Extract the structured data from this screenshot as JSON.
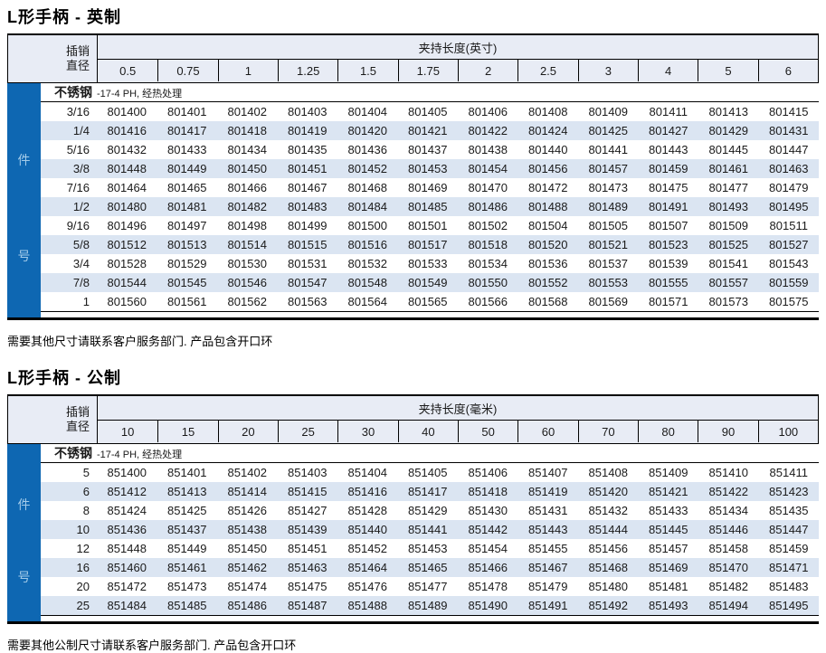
{
  "colors": {
    "accent_blue": "#0e67b2",
    "header_bg": "#e8ecf5",
    "alt_row": "#dbe5f2",
    "side_label": "#a3cbe9"
  },
  "tables": [
    {
      "title": "L形手柄 - 英制",
      "corner": [
        "插销",
        "直径"
      ],
      "span_header": "夹持长度(英寸)",
      "columns": [
        "0.5",
        "0.75",
        "1",
        "1.25",
        "1.5",
        "1.75",
        "2",
        "2.5",
        "3",
        "4",
        "5",
        "6"
      ],
      "material": "不锈钢",
      "material_note": "-17-4 PH, 经热处理",
      "side_top": "件",
      "side_bottom": "号",
      "rows": [
        {
          "diameter": "3/16",
          "parts": [
            "801400",
            "801401",
            "801402",
            "801403",
            "801404",
            "801405",
            "801406",
            "801408",
            "801409",
            "801411",
            "801413",
            "801415"
          ]
        },
        {
          "diameter": "1/4",
          "parts": [
            "801416",
            "801417",
            "801418",
            "801419",
            "801420",
            "801421",
            "801422",
            "801424",
            "801425",
            "801427",
            "801429",
            "801431"
          ]
        },
        {
          "diameter": "5/16",
          "parts": [
            "801432",
            "801433",
            "801434",
            "801435",
            "801436",
            "801437",
            "801438",
            "801440",
            "801441",
            "801443",
            "801445",
            "801447"
          ]
        },
        {
          "diameter": "3/8",
          "parts": [
            "801448",
            "801449",
            "801450",
            "801451",
            "801452",
            "801453",
            "801454",
            "801456",
            "801457",
            "801459",
            "801461",
            "801463"
          ]
        },
        {
          "diameter": "7/16",
          "parts": [
            "801464",
            "801465",
            "801466",
            "801467",
            "801468",
            "801469",
            "801470",
            "801472",
            "801473",
            "801475",
            "801477",
            "801479"
          ]
        },
        {
          "diameter": "1/2",
          "parts": [
            "801480",
            "801481",
            "801482",
            "801483",
            "801484",
            "801485",
            "801486",
            "801488",
            "801489",
            "801491",
            "801493",
            "801495"
          ]
        },
        {
          "diameter": "9/16",
          "parts": [
            "801496",
            "801497",
            "801498",
            "801499",
            "801500",
            "801501",
            "801502",
            "801504",
            "801505",
            "801507",
            "801509",
            "801511"
          ]
        },
        {
          "diameter": "5/8",
          "parts": [
            "801512",
            "801513",
            "801514",
            "801515",
            "801516",
            "801517",
            "801518",
            "801520",
            "801521",
            "801523",
            "801525",
            "801527"
          ]
        },
        {
          "diameter": "3/4",
          "parts": [
            "801528",
            "801529",
            "801530",
            "801531",
            "801532",
            "801533",
            "801534",
            "801536",
            "801537",
            "801539",
            "801541",
            "801543"
          ]
        },
        {
          "diameter": "7/8",
          "parts": [
            "801544",
            "801545",
            "801546",
            "801547",
            "801548",
            "801549",
            "801550",
            "801552",
            "801553",
            "801555",
            "801557",
            "801559"
          ]
        },
        {
          "diameter": "1",
          "parts": [
            "801560",
            "801561",
            "801562",
            "801563",
            "801564",
            "801565",
            "801566",
            "801568",
            "801569",
            "801571",
            "801573",
            "801575"
          ]
        }
      ],
      "footer": "需要其他尺寸请联系客户服务部门.  产品包含开口环"
    },
    {
      "title": "L形手柄 - 公制",
      "corner": [
        "插销",
        "直径"
      ],
      "span_header": "夹持长度(毫米)",
      "columns": [
        "10",
        "15",
        "20",
        "25",
        "30",
        "40",
        "50",
        "60",
        "70",
        "80",
        "90",
        "100"
      ],
      "material": "不锈钢",
      "material_note": "-17-4 PH, 经热处理",
      "side_top": "件",
      "side_bottom": "号",
      "rows": [
        {
          "diameter": "5",
          "parts": [
            "851400",
            "851401",
            "851402",
            "851403",
            "851404",
            "851405",
            "851406",
            "851407",
            "851408",
            "851409",
            "851410",
            "851411"
          ]
        },
        {
          "diameter": "6",
          "parts": [
            "851412",
            "851413",
            "851414",
            "851415",
            "851416",
            "851417",
            "851418",
            "851419",
            "851420",
            "851421",
            "851422",
            "851423"
          ]
        },
        {
          "diameter": "8",
          "parts": [
            "851424",
            "851425",
            "851426",
            "851427",
            "851428",
            "851429",
            "851430",
            "851431",
            "851432",
            "851433",
            "851434",
            "851435"
          ]
        },
        {
          "diameter": "10",
          "parts": [
            "851436",
            "851437",
            "851438",
            "851439",
            "851440",
            "851441",
            "851442",
            "851443",
            "851444",
            "851445",
            "851446",
            "851447"
          ]
        },
        {
          "diameter": "12",
          "parts": [
            "851448",
            "851449",
            "851450",
            "851451",
            "851452",
            "851453",
            "851454",
            "851455",
            "851456",
            "851457",
            "851458",
            "851459"
          ]
        },
        {
          "diameter": "16",
          "parts": [
            "851460",
            "851461",
            "851462",
            "851463",
            "851464",
            "851465",
            "851466",
            "851467",
            "851468",
            "851469",
            "851470",
            "851471"
          ]
        },
        {
          "diameter": "20",
          "parts": [
            "851472",
            "851473",
            "851474",
            "851475",
            "851476",
            "851477",
            "851478",
            "851479",
            "851480",
            "851481",
            "851482",
            "851483"
          ]
        },
        {
          "diameter": "25",
          "parts": [
            "851484",
            "851485",
            "851486",
            "851487",
            "851488",
            "851489",
            "851490",
            "851491",
            "851492",
            "851493",
            "851494",
            "851495"
          ]
        }
      ],
      "footer": "需要其他公制尺寸请联系客户服务部门.  产品包含开口环"
    }
  ]
}
